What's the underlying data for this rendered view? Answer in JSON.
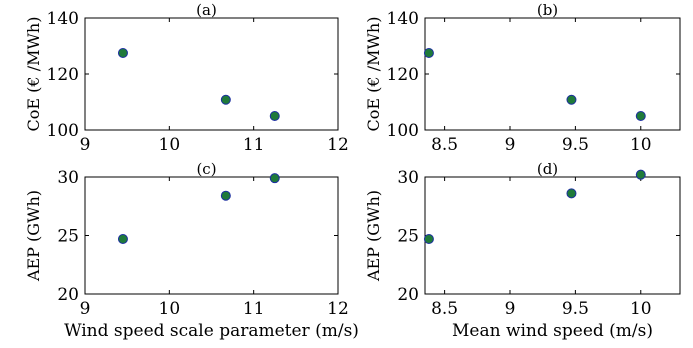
{
  "chart_data": [
    {
      "type": "scatter",
      "panel_label": "(a)",
      "x": [
        9.45,
        10.67,
        11.25
      ],
      "y": [
        127.5,
        110.8,
        105.0
      ],
      "xlim": [
        9,
        12
      ],
      "ylim": [
        100,
        140
      ],
      "xticks": [
        "9",
        "10",
        "11",
        "12"
      ],
      "yticks": [
        "100",
        "120",
        "140"
      ],
      "xlabel": "",
      "ylabel": "CoE (€ /MWh)",
      "marker_color": "#1f7a3a",
      "marker_edge": "#1c2fa0"
    },
    {
      "type": "scatter",
      "panel_label": "(b)",
      "x": [
        8.38,
        9.47,
        10.0
      ],
      "y": [
        127.5,
        110.8,
        105.0
      ],
      "xlim": [
        8.35,
        10.3
      ],
      "ylim": [
        100,
        140
      ],
      "xticks": [
        "8.5",
        "9",
        "9.5",
        "10"
      ],
      "yticks": [
        "100",
        "120",
        "140"
      ],
      "xlabel": "",
      "ylabel": "CoE (€ /MWh)",
      "marker_color": "#1f7a3a",
      "marker_edge": "#1c2fa0"
    },
    {
      "type": "scatter",
      "panel_label": "(c)",
      "x": [
        9.45,
        10.67,
        11.25
      ],
      "y": [
        24.7,
        28.4,
        29.9
      ],
      "xlim": [
        9,
        12
      ],
      "ylim": [
        20,
        30
      ],
      "xticks": [
        "9",
        "10",
        "11",
        "12"
      ],
      "yticks": [
        "20",
        "25",
        "30"
      ],
      "xlabel": "Wind speed scale parameter (m/s)",
      "ylabel": "AEP (GWh)",
      "marker_color": "#1f7a3a",
      "marker_edge": "#1c2fa0"
    },
    {
      "type": "scatter",
      "panel_label": "(d)",
      "x": [
        8.38,
        9.47,
        10.0
      ],
      "y": [
        24.7,
        28.6,
        30.2
      ],
      "xlim": [
        8.35,
        10.3
      ],
      "ylim": [
        20,
        30
      ],
      "xticks": [
        "8.5",
        "9",
        "9.5",
        "10"
      ],
      "yticks": [
        "20",
        "25",
        "30"
      ],
      "xlabel": "Mean wind speed (m/s)",
      "ylabel": "AEP (GWh)",
      "marker_color": "#1f7a3a",
      "marker_edge": "#1c2fa0"
    }
  ]
}
